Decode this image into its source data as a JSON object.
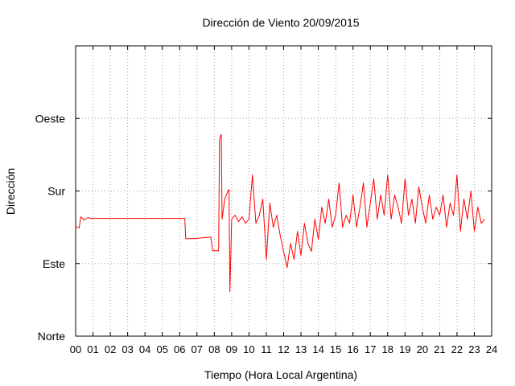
{
  "chart_data": {
    "type": "line",
    "title": "Dirección de Viento 20/09/2015",
    "xlabel": "Tiempo (Hora Local Argentina)",
    "ylabel": "Dirección",
    "xlim": [
      0,
      24
    ],
    "ylim": [
      0,
      360
    ],
    "x_ticks": [
      0,
      1,
      2,
      3,
      4,
      5,
      6,
      7,
      8,
      9,
      10,
      11,
      12,
      13,
      14,
      15,
      16,
      17,
      18,
      19,
      20,
      21,
      22,
      23,
      24
    ],
    "x_tick_labels": [
      "00",
      "01",
      "02",
      "03",
      "04",
      "05",
      "06",
      "07",
      "08",
      "09",
      "10",
      "11",
      "12",
      "13",
      "14",
      "15",
      "16",
      "17",
      "18",
      "19",
      "20",
      "21",
      "22",
      "23",
      "24"
    ],
    "y_ticks": [
      0,
      90,
      180,
      270
    ],
    "y_tick_labels": [
      "Norte",
      "Este",
      "Sur",
      "Oeste"
    ],
    "grid": true,
    "line_color": "#ff0000",
    "series": [
      {
        "values": [
          [
            0.0,
            136
          ],
          [
            0.2,
            134
          ],
          [
            0.3,
            148
          ],
          [
            0.5,
            144
          ],
          [
            0.7,
            147
          ],
          [
            0.9,
            146
          ],
          [
            1.2,
            146
          ],
          [
            1.6,
            146
          ],
          [
            2.0,
            146
          ],
          [
            2.4,
            146
          ],
          [
            2.8,
            146
          ],
          [
            3.2,
            146
          ],
          [
            3.6,
            146
          ],
          [
            4.0,
            146
          ],
          [
            4.4,
            146
          ],
          [
            4.8,
            146
          ],
          [
            5.2,
            146
          ],
          [
            5.6,
            146
          ],
          [
            6.0,
            146
          ],
          [
            6.3,
            146
          ],
          [
            6.35,
            121
          ],
          [
            6.8,
            121
          ],
          [
            7.3,
            122
          ],
          [
            7.8,
            123
          ],
          [
            7.9,
            106
          ],
          [
            8.1,
            106
          ],
          [
            8.25,
            106
          ],
          [
            8.3,
            243
          ],
          [
            8.35,
            248
          ],
          [
            8.4,
            250
          ],
          [
            8.45,
            145
          ],
          [
            8.6,
            170
          ],
          [
            8.75,
            178
          ],
          [
            8.85,
            182
          ],
          [
            8.9,
            55
          ],
          [
            9.0,
            145
          ],
          [
            9.2,
            150
          ],
          [
            9.4,
            142
          ],
          [
            9.6,
            148
          ],
          [
            9.8,
            140
          ],
          [
            10.0,
            145
          ],
          [
            10.2,
            200
          ],
          [
            10.4,
            140
          ],
          [
            10.6,
            150
          ],
          [
            10.8,
            170
          ],
          [
            11.0,
            95
          ],
          [
            11.2,
            165
          ],
          [
            11.4,
            135
          ],
          [
            11.6,
            150
          ],
          [
            11.8,
            125
          ],
          [
            12.0,
            105
          ],
          [
            12.2,
            85
          ],
          [
            12.4,
            115
          ],
          [
            12.6,
            95
          ],
          [
            12.8,
            130
          ],
          [
            13.0,
            100
          ],
          [
            13.2,
            140
          ],
          [
            13.4,
            115
          ],
          [
            13.6,
            105
          ],
          [
            13.8,
            145
          ],
          [
            14.0,
            120
          ],
          [
            14.2,
            160
          ],
          [
            14.4,
            140
          ],
          [
            14.6,
            170
          ],
          [
            14.8,
            135
          ],
          [
            15.0,
            150
          ],
          [
            15.2,
            190
          ],
          [
            15.4,
            135
          ],
          [
            15.6,
            150
          ],
          [
            15.8,
            140
          ],
          [
            16.0,
            175
          ],
          [
            16.2,
            135
          ],
          [
            16.4,
            160
          ],
          [
            16.6,
            190
          ],
          [
            16.8,
            135
          ],
          [
            17.0,
            165
          ],
          [
            17.2,
            195
          ],
          [
            17.4,
            145
          ],
          [
            17.6,
            175
          ],
          [
            17.8,
            150
          ],
          [
            18.0,
            200
          ],
          [
            18.2,
            145
          ],
          [
            18.4,
            175
          ],
          [
            18.6,
            160
          ],
          [
            18.8,
            140
          ],
          [
            19.0,
            195
          ],
          [
            19.2,
            150
          ],
          [
            19.4,
            170
          ],
          [
            19.6,
            140
          ],
          [
            19.8,
            185
          ],
          [
            20.0,
            160
          ],
          [
            20.2,
            140
          ],
          [
            20.4,
            175
          ],
          [
            20.6,
            145
          ],
          [
            20.8,
            160
          ],
          [
            21.0,
            150
          ],
          [
            21.2,
            175
          ],
          [
            21.4,
            135
          ],
          [
            21.6,
            165
          ],
          [
            21.8,
            150
          ],
          [
            22.0,
            200
          ],
          [
            22.2,
            130
          ],
          [
            22.4,
            170
          ],
          [
            22.6,
            145
          ],
          [
            22.8,
            180
          ],
          [
            23.0,
            130
          ],
          [
            23.2,
            160
          ],
          [
            23.4,
            140
          ],
          [
            23.6,
            145
          ]
        ]
      }
    ]
  }
}
